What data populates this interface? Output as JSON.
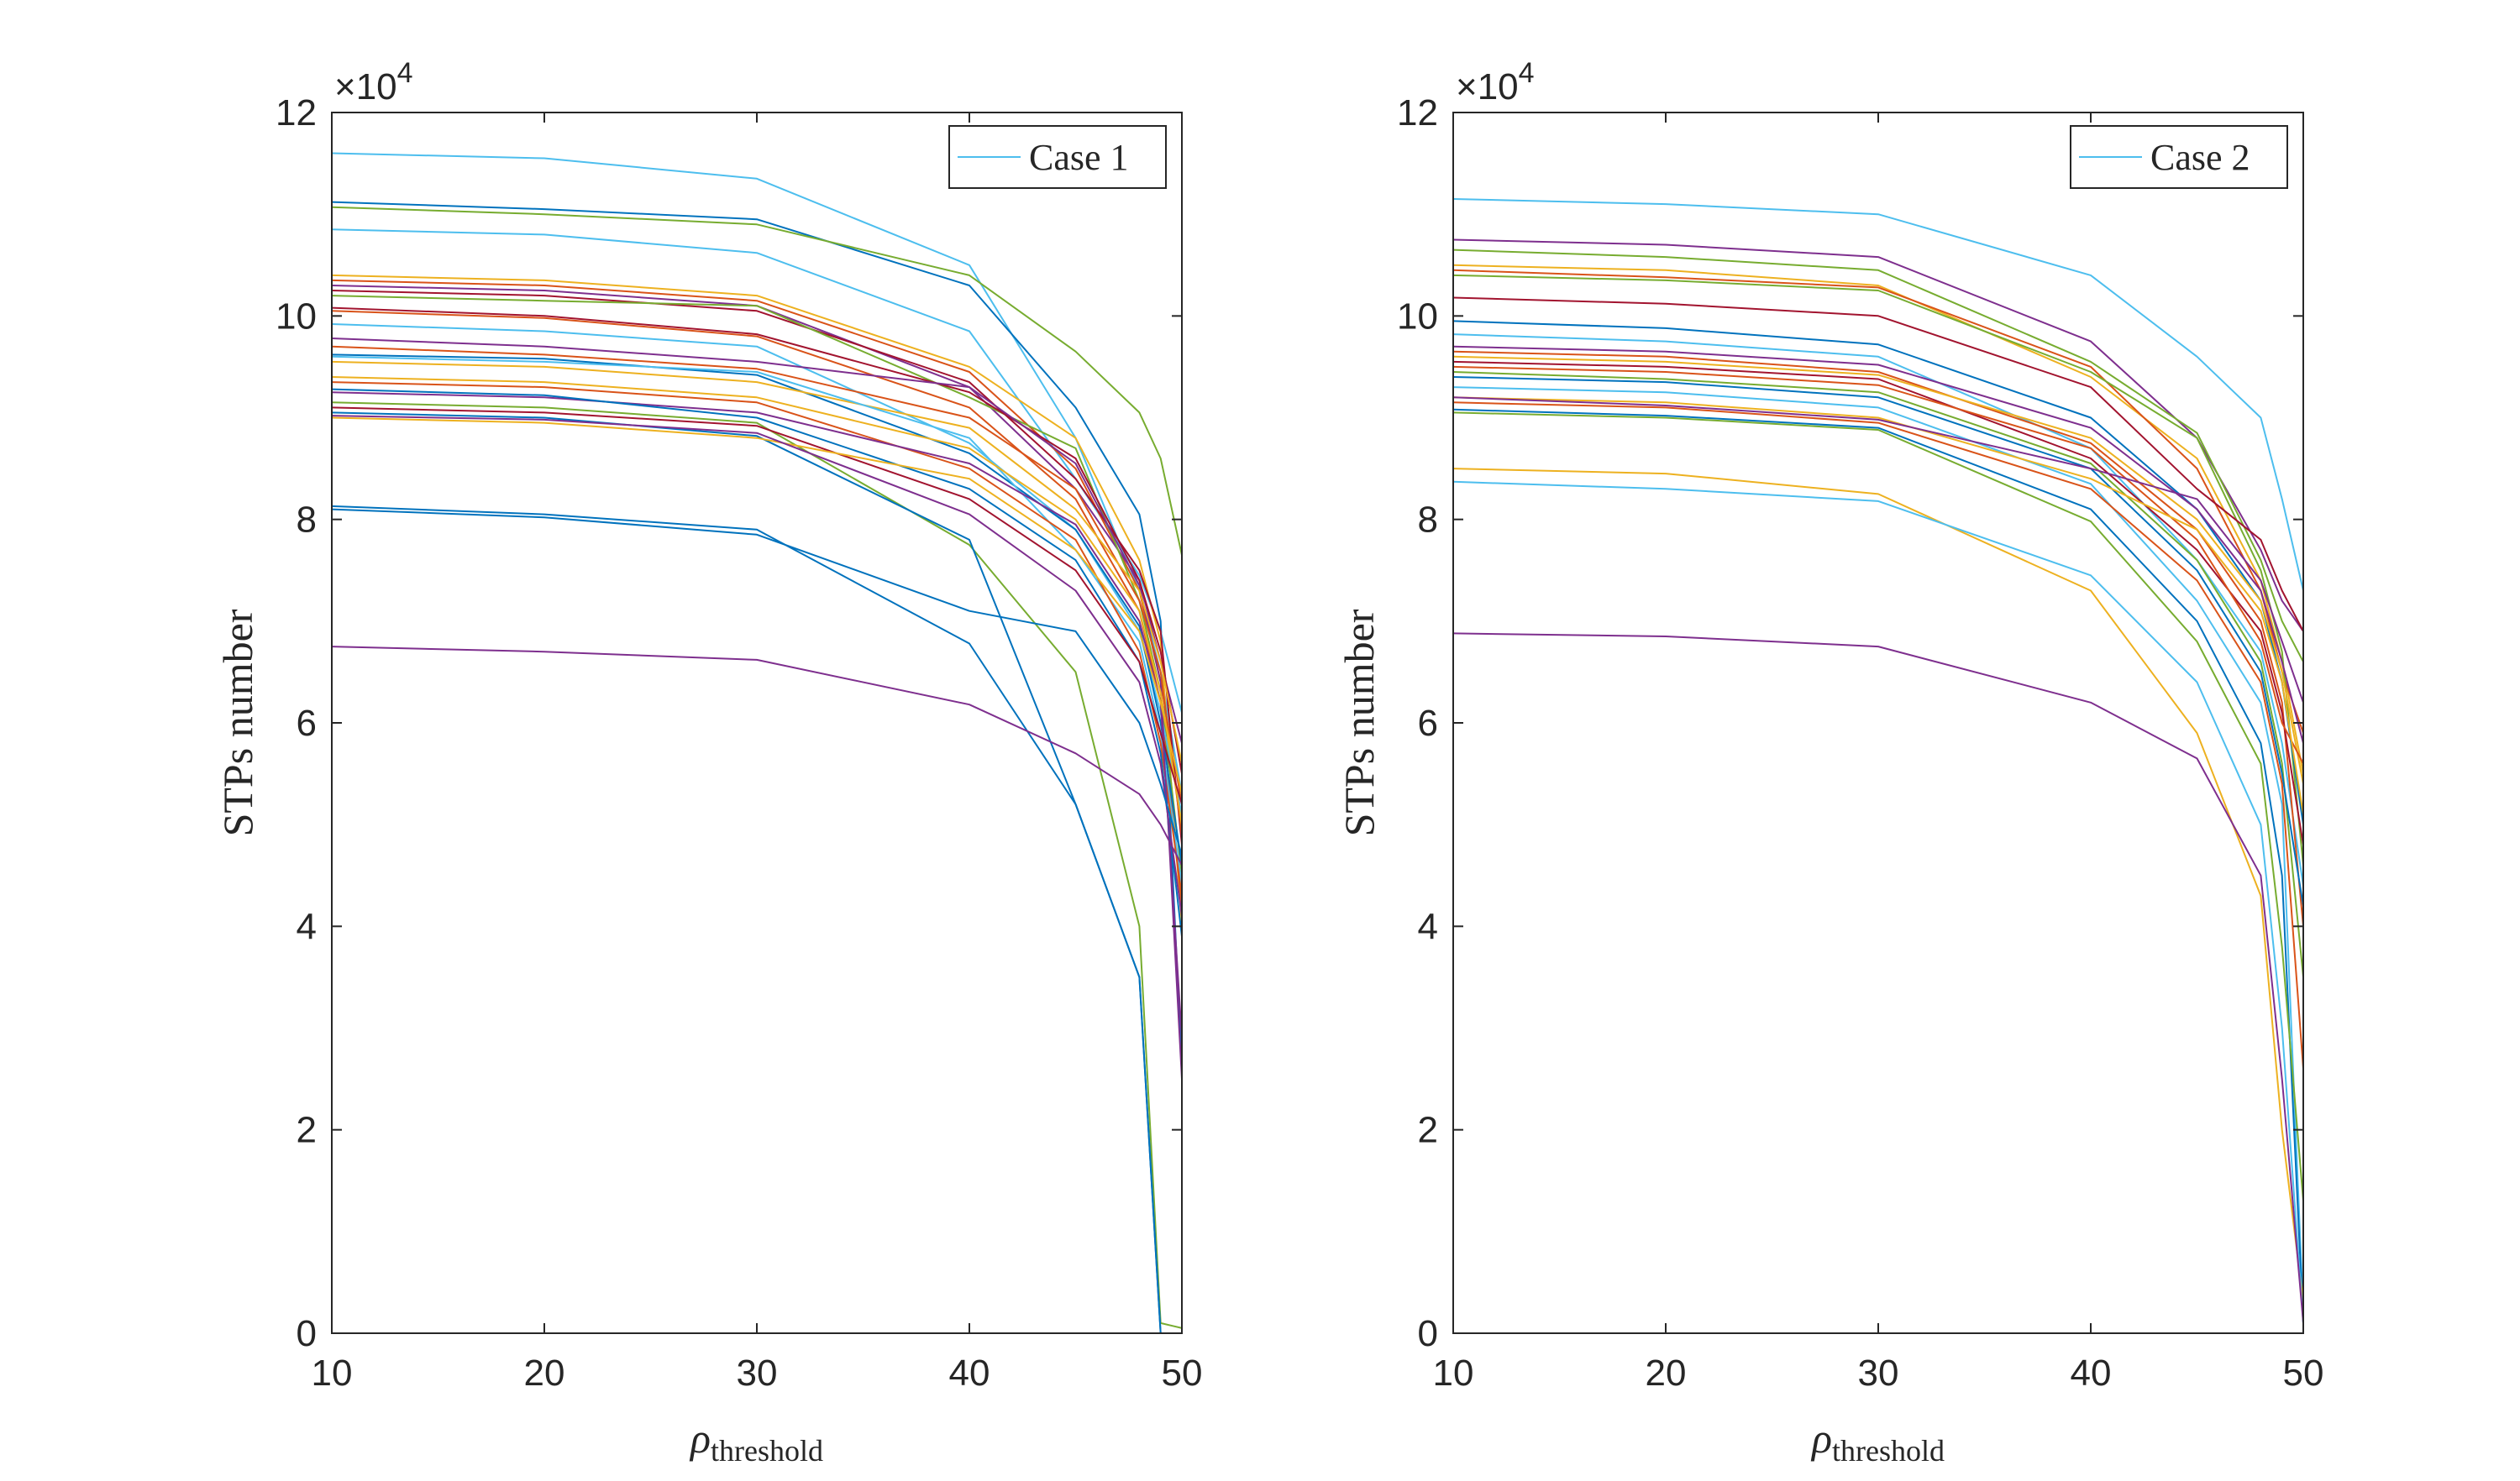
{
  "chart_data": [
    {
      "type": "line",
      "title": "",
      "xlabel": "ρ",
      "xlabel_sub": "threshold",
      "ylabel": "STPs number",
      "y_multiplier": "×10",
      "y_multiplier_exp": "4",
      "xlim": [
        10,
        50
      ],
      "ylim": [
        0,
        12
      ],
      "xticks": [
        10,
        20,
        30,
        40,
        50
      ],
      "yticks": [
        0,
        2,
        4,
        6,
        8,
        10,
        12
      ],
      "grid": false,
      "legend": {
        "placement": "top-right",
        "entries": [
          {
            "label": "Case 1",
            "color": "#4DBEEE"
          }
        ]
      },
      "x": [
        10,
        20,
        30,
        40,
        45,
        48,
        49,
        50
      ],
      "series": [
        {
          "color": "#4DBEEE",
          "values": [
            11.6,
            11.55,
            11.35,
            10.5,
            8.8,
            7.3,
            6.5,
            5.3
          ]
        },
        {
          "color": "#0072BD",
          "values": [
            11.12,
            11.05,
            10.95,
            10.3,
            9.1,
            8.05,
            7.0,
            2.6
          ]
        },
        {
          "color": "#77AC30",
          "values": [
            11.07,
            11.0,
            10.9,
            10.4,
            9.65,
            9.05,
            8.6,
            7.65
          ]
        },
        {
          "color": "#4DBEEE",
          "values": [
            10.85,
            10.8,
            10.62,
            9.85,
            8.4,
            7.45,
            6.9,
            6.1
          ]
        },
        {
          "color": "#EDB120",
          "values": [
            10.4,
            10.35,
            10.2,
            9.5,
            8.8,
            7.6,
            6.8,
            4.0
          ]
        },
        {
          "color": "#D95319",
          "values": [
            10.35,
            10.3,
            10.15,
            9.45,
            8.5,
            7.3,
            6.4,
            5.2
          ]
        },
        {
          "color": "#7E2F8E",
          "values": [
            10.3,
            10.25,
            10.1,
            9.3,
            8.3,
            7.4,
            6.6,
            5.8
          ]
        },
        {
          "color": "#A2142F",
          "values": [
            10.25,
            10.2,
            10.05,
            9.35,
            8.4,
            7.5,
            6.9,
            4.8
          ]
        },
        {
          "color": "#77AC30",
          "values": [
            10.2,
            10.15,
            10.1,
            9.2,
            8.7,
            7.2,
            6.3,
            4.5
          ]
        },
        {
          "color": "#A2142F",
          "values": [
            10.08,
            10.0,
            9.82,
            9.25,
            8.6,
            7.4,
            6.7,
            5.5
          ]
        },
        {
          "color": "#D95319",
          "values": [
            10.05,
            9.98,
            9.8,
            9.1,
            8.2,
            7.1,
            6.2,
            4.2
          ]
        },
        {
          "color": "#4DBEEE",
          "values": [
            9.92,
            9.85,
            9.7,
            8.75,
            7.9,
            6.9,
            6.1,
            5.1
          ]
        },
        {
          "color": "#7E2F8E",
          "values": [
            9.78,
            9.7,
            9.55,
            9.3,
            8.55,
            7.35,
            6.4,
            2.5
          ]
        },
        {
          "color": "#D95319",
          "values": [
            9.7,
            9.62,
            9.48,
            9.0,
            8.3,
            7.2,
            6.5,
            4.9
          ]
        },
        {
          "color": "#0072BD",
          "values": [
            9.62,
            9.58,
            9.42,
            8.65,
            7.9,
            6.95,
            6.0,
            4.6
          ]
        },
        {
          "color": "#EDB120",
          "values": [
            9.55,
            9.5,
            9.35,
            8.9,
            8.1,
            7.3,
            6.6,
            5.6
          ]
        },
        {
          "color": "#4DBEEE",
          "values": [
            9.6,
            9.55,
            9.45,
            8.8,
            7.7,
            6.8,
            5.9,
            4.4
          ]
        },
        {
          "color": "#EDB120",
          "values": [
            9.4,
            9.35,
            9.2,
            8.7,
            8.0,
            7.1,
            6.3,
            5.0
          ]
        },
        {
          "color": "#D95319",
          "values": [
            9.35,
            9.3,
            9.15,
            8.5,
            7.8,
            6.7,
            5.8,
            4.3
          ]
        },
        {
          "color": "#7E2F8E",
          "values": [
            9.25,
            9.2,
            9.05,
            8.55,
            7.95,
            7.0,
            6.2,
            2.9
          ]
        },
        {
          "color": "#0072BD",
          "values": [
            9.28,
            9.22,
            9.0,
            8.3,
            7.6,
            6.6,
            5.7,
            3.9
          ]
        },
        {
          "color": "#77AC30",
          "values": [
            9.15,
            9.1,
            8.95,
            7.75,
            6.5,
            4.0,
            0.1,
            0.05
          ]
        },
        {
          "color": "#A2142F",
          "values": [
            9.1,
            9.05,
            8.92,
            8.2,
            7.5,
            6.6,
            5.9,
            5.2
          ]
        },
        {
          "color": "#0072BD",
          "values": [
            9.05,
            9.0,
            8.82,
            7.8,
            5.2,
            3.5,
            0.0,
            0.0
          ]
        },
        {
          "color": "#EDB120",
          "values": [
            9.0,
            8.95,
            8.8,
            8.4,
            7.7,
            6.9,
            6.2,
            5.3
          ]
        },
        {
          "color": "#7E2F8E",
          "values": [
            9.02,
            8.98,
            8.85,
            8.05,
            7.3,
            6.4,
            5.6,
            4.1
          ]
        },
        {
          "color": "#0072BD",
          "values": [
            8.13,
            8.05,
            7.9,
            6.78,
            5.2,
            3.5,
            0.0,
            0.0
          ]
        },
        {
          "color": "#0072BD",
          "values": [
            8.1,
            8.02,
            7.85,
            7.1,
            6.9,
            6.0,
            5.4,
            4.7
          ]
        },
        {
          "color": "#7E2F8E",
          "values": [
            6.75,
            6.7,
            6.62,
            6.18,
            5.7,
            5.3,
            5.0,
            4.6
          ]
        }
      ]
    },
    {
      "type": "line",
      "title": "",
      "xlabel": "ρ",
      "xlabel_sub": "threshold",
      "ylabel": "STPs number",
      "y_multiplier": "×10",
      "y_multiplier_exp": "4",
      "xlim": [
        10,
        50
      ],
      "ylim": [
        0,
        12
      ],
      "xticks": [
        10,
        20,
        30,
        40,
        50
      ],
      "yticks": [
        0,
        2,
        4,
        6,
        8,
        10,
        12
      ],
      "grid": false,
      "legend": {
        "placement": "top-right",
        "entries": [
          {
            "label": "Case 2",
            "color": "#4DBEEE"
          }
        ]
      },
      "x": [
        10,
        20,
        30,
        40,
        45,
        48,
        49,
        50
      ],
      "series": [
        {
          "color": "#4DBEEE",
          "values": [
            11.15,
            11.1,
            11.0,
            10.4,
            9.6,
            9.0,
            8.2,
            7.3
          ]
        },
        {
          "color": "#7E2F8E",
          "values": [
            10.75,
            10.7,
            10.58,
            9.75,
            8.8,
            7.7,
            7.2,
            6.9
          ]
        },
        {
          "color": "#77AC30",
          "values": [
            10.65,
            10.58,
            10.45,
            9.55,
            8.85,
            7.6,
            7.0,
            6.6
          ]
        },
        {
          "color": "#EDB120",
          "values": [
            10.5,
            10.45,
            10.3,
            9.4,
            8.6,
            7.4,
            6.6,
            5.5
          ]
        },
        {
          "color": "#D95319",
          "values": [
            10.45,
            10.38,
            10.28,
            9.5,
            8.5,
            7.3,
            6.5,
            5.9
          ]
        },
        {
          "color": "#77AC30",
          "values": [
            10.4,
            10.35,
            10.25,
            9.45,
            8.8,
            7.5,
            6.7,
            4.6
          ]
        },
        {
          "color": "#A2142F",
          "values": [
            10.18,
            10.12,
            10.0,
            9.3,
            8.3,
            7.8,
            7.3,
            6.9
          ]
        },
        {
          "color": "#0072BD",
          "values": [
            9.95,
            9.88,
            9.72,
            9.0,
            8.1,
            7.2,
            6.4,
            5.0
          ]
        },
        {
          "color": "#4DBEEE",
          "values": [
            9.82,
            9.75,
            9.6,
            8.7,
            7.6,
            6.7,
            5.8,
            4.4
          ]
        },
        {
          "color": "#7E2F8E",
          "values": [
            9.7,
            9.65,
            9.52,
            8.9,
            8.1,
            7.3,
            6.6,
            5.8
          ]
        },
        {
          "color": "#D95319",
          "values": [
            9.65,
            9.6,
            9.45,
            8.75,
            7.9,
            7.0,
            6.2,
            4.0
          ]
        },
        {
          "color": "#EDB120",
          "values": [
            9.6,
            9.55,
            9.42,
            8.8,
            8.0,
            7.2,
            6.5,
            5.4
          ]
        },
        {
          "color": "#A2142F",
          "values": [
            9.55,
            9.5,
            9.38,
            8.6,
            7.7,
            6.9,
            6.1,
            4.8
          ]
        },
        {
          "color": "#D95319",
          "values": [
            9.5,
            9.45,
            9.32,
            8.7,
            7.8,
            6.8,
            6.0,
            5.6
          ]
        },
        {
          "color": "#77AC30",
          "values": [
            9.45,
            9.38,
            9.25,
            8.55,
            7.6,
            6.6,
            5.6,
            3.5
          ]
        },
        {
          "color": "#0072BD",
          "values": [
            9.4,
            9.35,
            9.2,
            8.5,
            7.5,
            6.5,
            5.5,
            4.2
          ]
        },
        {
          "color": "#4DBEEE",
          "values": [
            9.3,
            9.25,
            9.1,
            8.35,
            7.2,
            6.2,
            5.2,
            0.2
          ]
        },
        {
          "color": "#EDB120",
          "values": [
            9.2,
            9.15,
            9.0,
            8.4,
            7.9,
            7.1,
            6.4,
            5.1
          ]
        },
        {
          "color": "#7E2F8E",
          "values": [
            9.2,
            9.12,
            8.98,
            8.5,
            8.2,
            7.4,
            6.8,
            6.2
          ]
        },
        {
          "color": "#D95319",
          "values": [
            9.15,
            9.1,
            8.95,
            8.3,
            7.4,
            6.4,
            5.4,
            2.6
          ]
        },
        {
          "color": "#0072BD",
          "values": [
            9.08,
            9.02,
            8.9,
            8.1,
            7.0,
            5.8,
            4.5,
            0.1
          ]
        },
        {
          "color": "#77AC30",
          "values": [
            9.05,
            9.0,
            8.88,
            7.98,
            6.8,
            5.6,
            3.8,
            1.3
          ]
        },
        {
          "color": "#EDB120",
          "values": [
            8.5,
            8.45,
            8.25,
            7.3,
            5.9,
            4.3,
            2.0,
            0.3
          ]
        },
        {
          "color": "#4DBEEE",
          "values": [
            8.37,
            8.3,
            8.18,
            7.45,
            6.4,
            5.0,
            3.0,
            0.1
          ]
        },
        {
          "color": "#7E2F8E",
          "values": [
            6.88,
            6.85,
            6.75,
            6.2,
            5.65,
            4.5,
            2.5,
            0.1
          ]
        }
      ]
    }
  ]
}
